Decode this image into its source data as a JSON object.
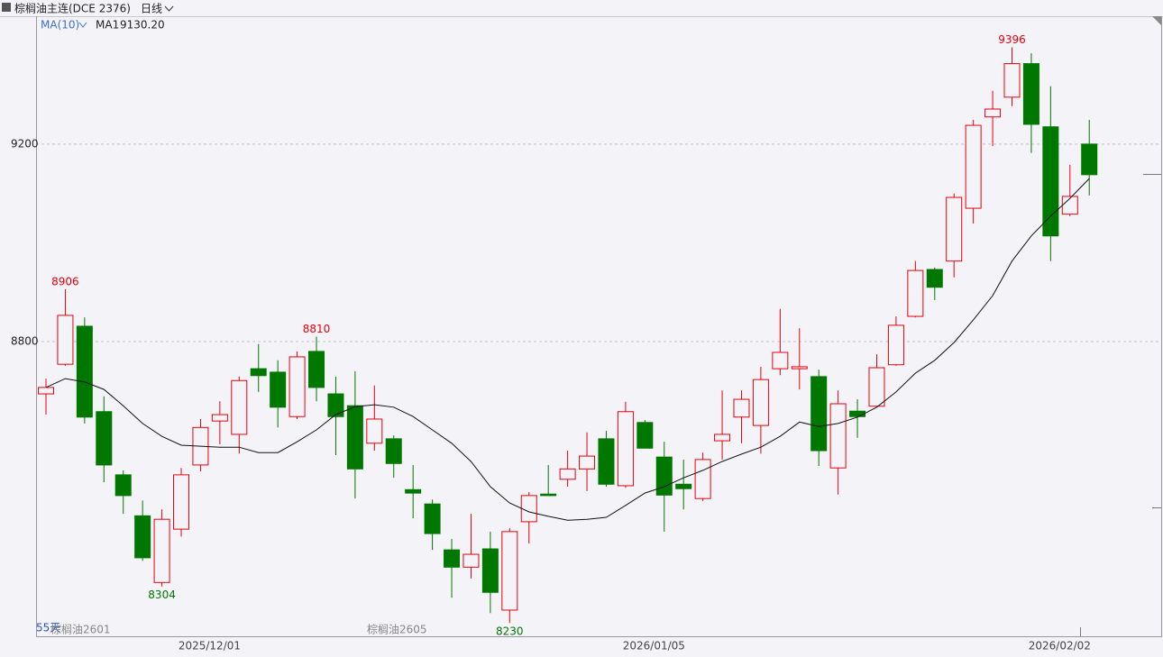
{
  "chart_data": {
    "type": "candlestick",
    "title": "棕榈油主连(DCE 2376)",
    "period": "日线",
    "categories": [
      null,
      null,
      null,
      null,
      null,
      null,
      null,
      null,
      "2025/12/01",
      null,
      null,
      null,
      null,
      null,
      null,
      null,
      null,
      null,
      null,
      null,
      null,
      null,
      null,
      null,
      null,
      null,
      null,
      null,
      null,
      null,
      null,
      "2026/01/05",
      null,
      null,
      null,
      null,
      null,
      null,
      null,
      null,
      null,
      null,
      null,
      null,
      null,
      null,
      null,
      null,
      null,
      null,
      null,
      null,
      "2026/02/02",
      null,
      null
    ],
    "ohlc": {
      "open": [
        8694,
        8754,
        8831,
        8658,
        8530,
        8447,
        8312,
        8420,
        8550,
        8639,
        8612,
        8745,
        8738,
        8648,
        8780,
        8694,
        8670,
        8594,
        8603,
        8500,
        8471,
        8378,
        8343,
        8380,
        8256,
        8435,
        8491,
        8521,
        8542,
        8603,
        8508,
        8636,
        8566,
        8511,
        8482,
        8599,
        8647,
        8630,
        8745,
        8745,
        8729,
        8544,
        8659,
        8669,
        8753,
        8851,
        8946,
        8963,
        9070,
        9255,
        9295,
        9363,
        9235,
        9058,
        9200
      ],
      "high": [
        8725,
        8906,
        8849,
        8689,
        8539,
        8478,
        8460,
        8544,
        8643,
        8679,
        8729,
        8795,
        8762,
        8780,
        8810,
        8729,
        8740,
        8711,
        8610,
        8550,
        8480,
        8400,
        8451,
        8415,
        8422,
        8495,
        8550,
        8579,
        8616,
        8619,
        8678,
        8641,
        8597,
        8561,
        8575,
        8701,
        8701,
        8749,
        8866,
        8827,
        8743,
        8701,
        8683,
        8774,
        8851,
        8963,
        8950,
        9100,
        9249,
        9308,
        9396,
        9384,
        9317,
        9158,
        9249
      ],
      "low": [
        8652,
        8751,
        8634,
        8515,
        8451,
        8356,
        8304,
        8405,
        8537,
        8592,
        8573,
        8698,
        8626,
        8643,
        8679,
        8570,
        8482,
        8579,
        8524,
        8442,
        8378,
        8281,
        8320,
        8250,
        8230,
        8391,
        8488,
        8506,
        8497,
        8506,
        8504,
        8584,
        8415,
        8460,
        8477,
        8561,
        8594,
        8573,
        8732,
        8703,
        8548,
        8490,
        8605,
        8667,
        8751,
        8849,
        8884,
        8930,
        9039,
        9196,
        9277,
        9182,
        8963,
        9054,
        9096
      ],
      "close": [
        8707,
        8853,
        8647,
        8550,
        8488,
        8362,
        8440,
        8530,
        8626,
        8652,
        8721,
        8731,
        8667,
        8769,
        8707,
        8648,
        8542,
        8643,
        8553,
        8493,
        8411,
        8343,
        8369,
        8292,
        8415,
        8488,
        8488,
        8542,
        8568,
        8511,
        8658,
        8584,
        8489,
        8502,
        8561,
        8612,
        8683,
        8723,
        8778,
        8749,
        8579,
        8674,
        8648,
        8747,
        8833,
        8944,
        8910,
        9092,
        9238,
        9271,
        9363,
        9240,
        9014,
        9094,
        9138
      ]
    },
    "up_color": "#e8000b",
    "down_color": "#007800",
    "ma": {
      "label": "MA(10)",
      "name": "MA1",
      "color": "#111111",
      "last": {
        "value": 9130.2,
        "label": "9130.20"
      },
      "values": [
        8707,
        8725,
        8718,
        8703,
        8670,
        8634,
        8608,
        8590,
        8588,
        8586,
        8586,
        8575,
        8575,
        8597,
        8621,
        8652,
        8668,
        8672,
        8667,
        8648,
        8621,
        8594,
        8557,
        8506,
        8473,
        8455,
        8446,
        8438,
        8440,
        8444,
        8468,
        8493,
        8506,
        8524,
        8539,
        8557,
        8572,
        8586,
        8608,
        8637,
        8628,
        8634,
        8647,
        8667,
        8698,
        8736,
        8762,
        8798,
        8844,
        8893,
        8963,
        9014,
        9054,
        9090,
        9130.2
      ]
    },
    "annotations": {
      "highs": [
        8906,
        8810,
        9396
      ],
      "lows": [
        8304,
        8230
      ]
    },
    "footer_labels": [
      "55天",
      "棕榈油2601",
      "棕榈油2605"
    ],
    "ylim": [
      8203,
      9459
    ],
    "yticks": [
      8800,
      9200
    ],
    "grid": true
  }
}
